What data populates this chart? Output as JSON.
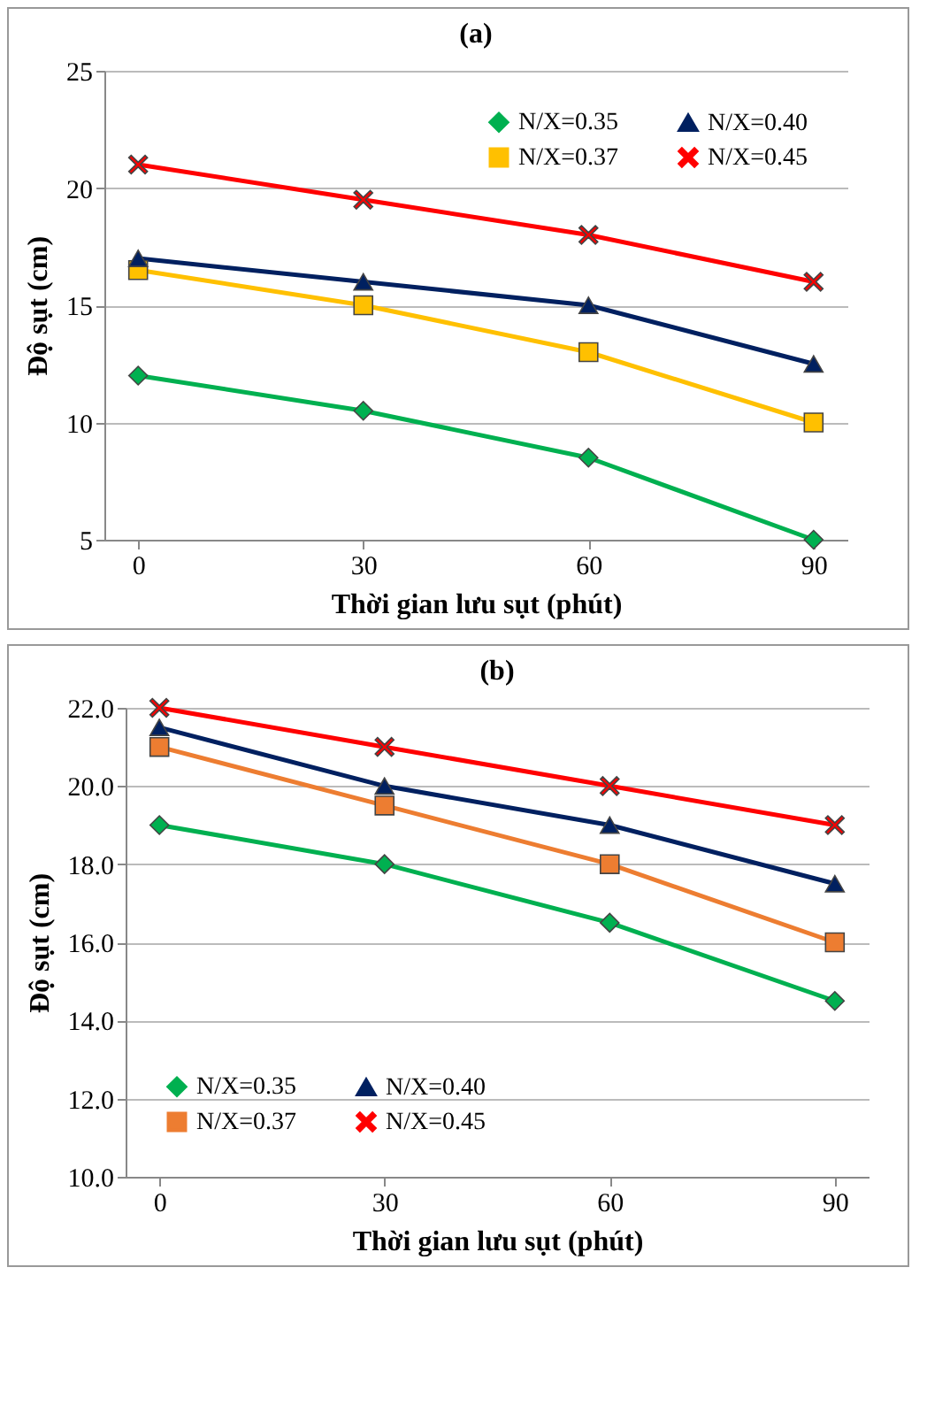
{
  "chart_data": [
    {
      "type": "line",
      "title": "(a)",
      "xlabel": "Thời gian lưu sụt (phút)",
      "ylabel": "Độ sụt (cm)",
      "categories": [
        "0",
        "30",
        "60",
        "90"
      ],
      "series": [
        {
          "name": "N/X=0.35",
          "color": "#00b050",
          "marker": "diamond",
          "values": [
            12,
            10.5,
            8.5,
            5
          ]
        },
        {
          "name": "N/X=0.37",
          "color": "#ffc000",
          "marker": "square",
          "values": [
            16.5,
            15,
            13,
            10
          ]
        },
        {
          "name": "N/X=0.40",
          "color": "#002060",
          "marker": "triangle",
          "values": [
            17,
            16,
            15,
            12.5
          ]
        },
        {
          "name": "N/X=0.45",
          "color": "#ff0000",
          "marker": "cross",
          "values": [
            21,
            19.5,
            18,
            16
          ]
        }
      ],
      "ylim": [
        5,
        25
      ],
      "yticks": [
        5,
        10,
        15,
        20,
        25
      ],
      "grid": "y",
      "legend": "top right"
    },
    {
      "type": "line",
      "title": "(b)",
      "xlabel": "Thời gian lưu sụt (phút)",
      "ylabel": "Độ sụt (cm)",
      "categories": [
        "0",
        "30",
        "60",
        "90"
      ],
      "series": [
        {
          "name": "N/X=0.35",
          "color": "#00b050",
          "marker": "diamond",
          "values": [
            19,
            18,
            16.5,
            14.5
          ]
        },
        {
          "name": "N/X=0.37",
          "color": "#ed7d31",
          "marker": "square",
          "values": [
            21,
            19.5,
            18,
            16
          ]
        },
        {
          "name": "N/X=0.40",
          "color": "#002060",
          "marker": "triangle",
          "values": [
            21.5,
            20,
            19,
            17.5
          ]
        },
        {
          "name": "N/X=0.45",
          "color": "#ff0000",
          "marker": "cross",
          "values": [
            22,
            21,
            20,
            19
          ]
        }
      ],
      "ylim": [
        10,
        22
      ],
      "yticks": [
        {
          "value": 10,
          "label": "10.0"
        },
        {
          "value": 12,
          "label": "12.0"
        },
        {
          "value": 14,
          "label": "14.0"
        },
        {
          "value": 16,
          "label": "16.0"
        },
        {
          "value": 18,
          "label": "18.0"
        },
        {
          "value": 20,
          "label": "20.0"
        },
        {
          "value": 22,
          "label": "22.0"
        }
      ],
      "grid": "y",
      "legend": "bottom"
    }
  ]
}
